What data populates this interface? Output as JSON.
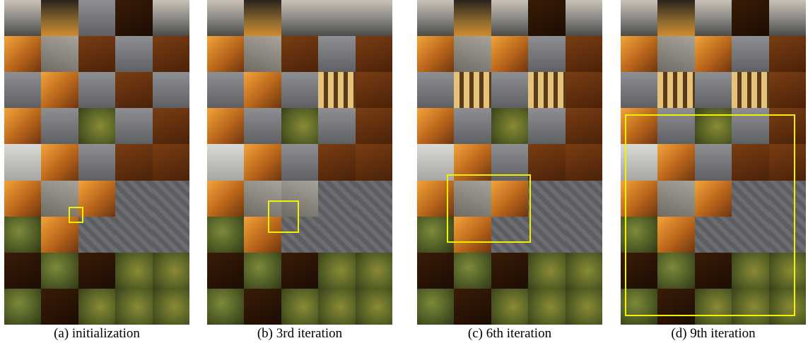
{
  "figure": {
    "panels": [
      {
        "caption": "(a) initialization",
        "tiles": [
          "t-city",
          "t-night",
          "t-gray",
          "t-dark",
          "t-city",
          "t-amber",
          "t-stone",
          "t-brown",
          "t-gray",
          "t-brown",
          "t-gray",
          "t-amber",
          "t-gray",
          "t-brown",
          "t-gray",
          "t-amber",
          "t-gray",
          "t-tree",
          "t-gray",
          "t-brown",
          "t-ltgray",
          "t-amber",
          "t-gray",
          "t-brown",
          "t-brown",
          "t-amber",
          "t-stone",
          "t-amber",
          "t-roof",
          "t-roof",
          "t-green",
          "t-amber",
          "t-roof",
          "t-roof",
          "t-roof",
          "t-dark",
          "t-green",
          "t-dark",
          "t-tree",
          "t-tree",
          "t-green",
          "t-dark",
          "t-tree",
          "t-tree",
          "t-tree"
        ]
      },
      {
        "caption": "(b) 3rd iteration",
        "tiles": [
          "t-city",
          "t-night",
          "t-city",
          "t-city",
          "t-city",
          "t-amber",
          "t-stone",
          "t-brown",
          "t-gray",
          "t-brown",
          "t-gray",
          "t-amber",
          "t-gray",
          "t-window",
          "t-brown",
          "t-amber",
          "t-gray",
          "t-tree",
          "t-gray",
          "t-brown",
          "t-ltgray",
          "t-amber",
          "t-gray",
          "t-brown",
          "t-brown",
          "t-amber",
          "t-stone",
          "t-stone",
          "t-roof",
          "t-roof",
          "t-green",
          "t-amber",
          "t-roof",
          "t-roof",
          "t-roof",
          "t-dark",
          "t-green",
          "t-dark",
          "t-tree",
          "t-tree",
          "t-green",
          "t-dark",
          "t-tree",
          "t-tree",
          "t-tree"
        ]
      },
      {
        "caption": "(c) 6th iteration",
        "tiles": [
          "t-city",
          "t-night",
          "t-city",
          "t-dark",
          "t-city",
          "t-amber",
          "t-stone",
          "t-amber",
          "t-gray",
          "t-brown",
          "t-gray",
          "t-window",
          "t-gray",
          "t-window",
          "t-brown",
          "t-amber",
          "t-gray",
          "t-tree",
          "t-gray",
          "t-brown",
          "t-ltgray",
          "t-amber",
          "t-gray",
          "t-brown",
          "t-brown",
          "t-amber",
          "t-stone",
          "t-amber",
          "t-roof",
          "t-roof",
          "t-green",
          "t-amber",
          "t-roof",
          "t-roof",
          "t-roof",
          "t-dark",
          "t-green",
          "t-dark",
          "t-tree",
          "t-tree",
          "t-green",
          "t-dark",
          "t-tree",
          "t-tree",
          "t-tree"
        ]
      },
      {
        "caption": "(d) 9th iteration",
        "tiles": [
          "t-city",
          "t-night",
          "t-city",
          "t-dark",
          "t-city",
          "t-amber",
          "t-stone",
          "t-amber",
          "t-gray",
          "t-brown",
          "t-gray",
          "t-window",
          "t-gray",
          "t-window",
          "t-brown",
          "t-amber",
          "t-gray",
          "t-tree",
          "t-gray",
          "t-brown",
          "t-ltgray",
          "t-amber",
          "t-gray",
          "t-brown",
          "t-brown",
          "t-amber",
          "t-stone",
          "t-amber",
          "t-roof",
          "t-roof",
          "t-green",
          "t-amber",
          "t-roof",
          "t-roof",
          "t-roof",
          "t-dark",
          "t-green",
          "t-dark",
          "t-tree",
          "t-tree",
          "t-green",
          "t-dark",
          "t-tree",
          "t-tree",
          "t-tree"
        ]
      }
    ],
    "highlight_color": "#f2f200"
  }
}
